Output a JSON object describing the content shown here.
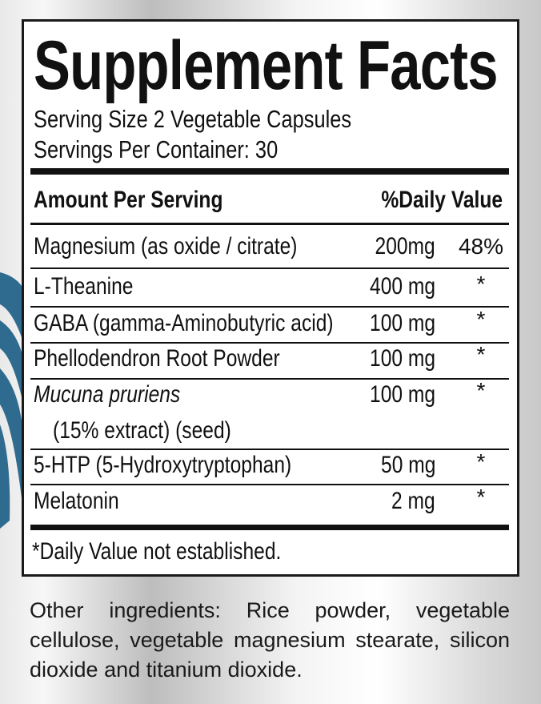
{
  "title": "Supplement Facts",
  "serving_size": "Serving Size 2 Vegetable Capsules",
  "servings_per_container": "Servings Per Container: 30",
  "header": {
    "amount": "Amount Per Serving",
    "daily_value": "%Daily Value"
  },
  "rows": [
    {
      "name": "Magnesium (as oxide / citrate)",
      "amount": "200mg",
      "dv": "48%"
    },
    {
      "name": "L-Theanine",
      "amount": "400 mg",
      "dv": "*"
    },
    {
      "name": "GABA (gamma-Aminobutyric acid)",
      "amount": "100 mg",
      "dv": "*"
    },
    {
      "name": "Phellodendron Root Powder",
      "amount": "100 mg",
      "dv": "*"
    },
    {
      "name": "Mucuna pruriens",
      "name_line2": "(15% extract) (seed)",
      "amount": "100 mg",
      "dv": "*"
    },
    {
      "name": "5-HTP (5-Hydroxytryptophan)",
      "amount": "50 mg",
      "dv": "*"
    },
    {
      "name": "Melatonin",
      "amount": "2 mg",
      "dv": "*"
    }
  ],
  "footnote": "*Daily Value not established.",
  "other_ingredients": "Other ingredients: Rice powder, vegetable cellulose, vegetable magnesium stearate, silicon dioxide and titanium dioxide.",
  "colors": {
    "accent_swoosh": "#2e6b8f",
    "text": "#111111"
  }
}
